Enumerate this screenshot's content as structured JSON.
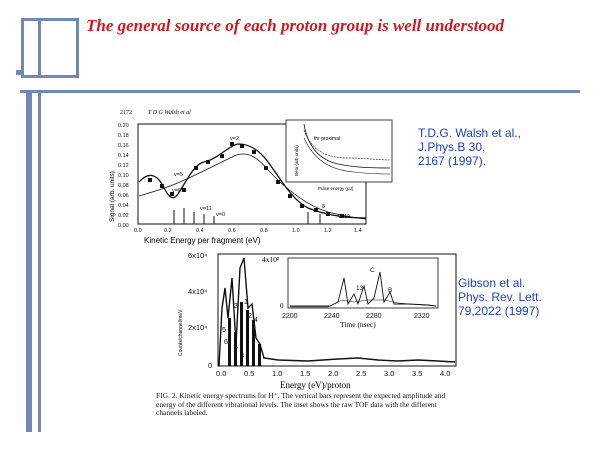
{
  "slide": {
    "title": "The general source of each proton group is well understood"
  },
  "citations": {
    "walsh": [
      "T.D.G. Walsh et al.,",
      "J.Phys.B 30,",
      "2167 (1997)."
    ],
    "gibson": [
      "Gibson et al.",
      "Phys. Rev. Lett.",
      "79,2022 (1997)"
    ]
  },
  "figure1": {
    "header_page": "2172",
    "header_author": "T D G Walsh et al",
    "ylabel": "Signal (arb. units)",
    "xlabel": "Kinetic Energy per fragment (eV)",
    "yticks": [
      "0.20",
      "0.18",
      "0.16",
      "0.14",
      "0.12",
      "0.10",
      "0.08",
      "0.06",
      "0.04",
      "0.02",
      "0.00"
    ],
    "xticks": [
      "0.0",
      "0.2",
      "0.4",
      "0.6",
      "0.8",
      "1.0",
      "1.2",
      "1.4"
    ],
    "labels": {
      "v2": "v=2",
      "v5": "v=5",
      "v6": "v=6",
      "v11": "v=11",
      "v8": "8",
      "v10": "v=10",
      "v0": "v=0"
    },
    "inset_label": "thr proximal",
    "inset_ylabel": "Beta (arb.units)",
    "inset_xlabel": "Pulse energy (μJ)"
  },
  "figure2": {
    "yticks": [
      "6x10⁴",
      "4x10⁴",
      "2x10⁴",
      "0"
    ],
    "ylabel": "Counts/channel/meV",
    "xticks": [
      "0.0",
      "0.5",
      "1.0",
      "1.5",
      "2.0",
      "2.5",
      "3.0",
      "3.5",
      "4.0"
    ],
    "xlabel": "Energy (eV)/proton",
    "peak_labels": [
      "1",
      "2",
      "3",
      "4",
      "5",
      "6",
      "7",
      "8"
    ],
    "inset": {
      "ytick_top": "4x10²",
      "ytick_bottom": "0",
      "xticks": [
        "2200",
        "2240",
        "2280",
        "2320"
      ],
      "xlabel": "Time (nsec)",
      "labels": [
        "C",
        "13",
        "B"
      ]
    },
    "caption": "FIG. 2.   Kinetic energy spectrums for H⁺. The vertical bars represent the expected amplitude and energy of the different vibrational levels. The inset shows the raw TOF data with the different channels labeled."
  }
}
